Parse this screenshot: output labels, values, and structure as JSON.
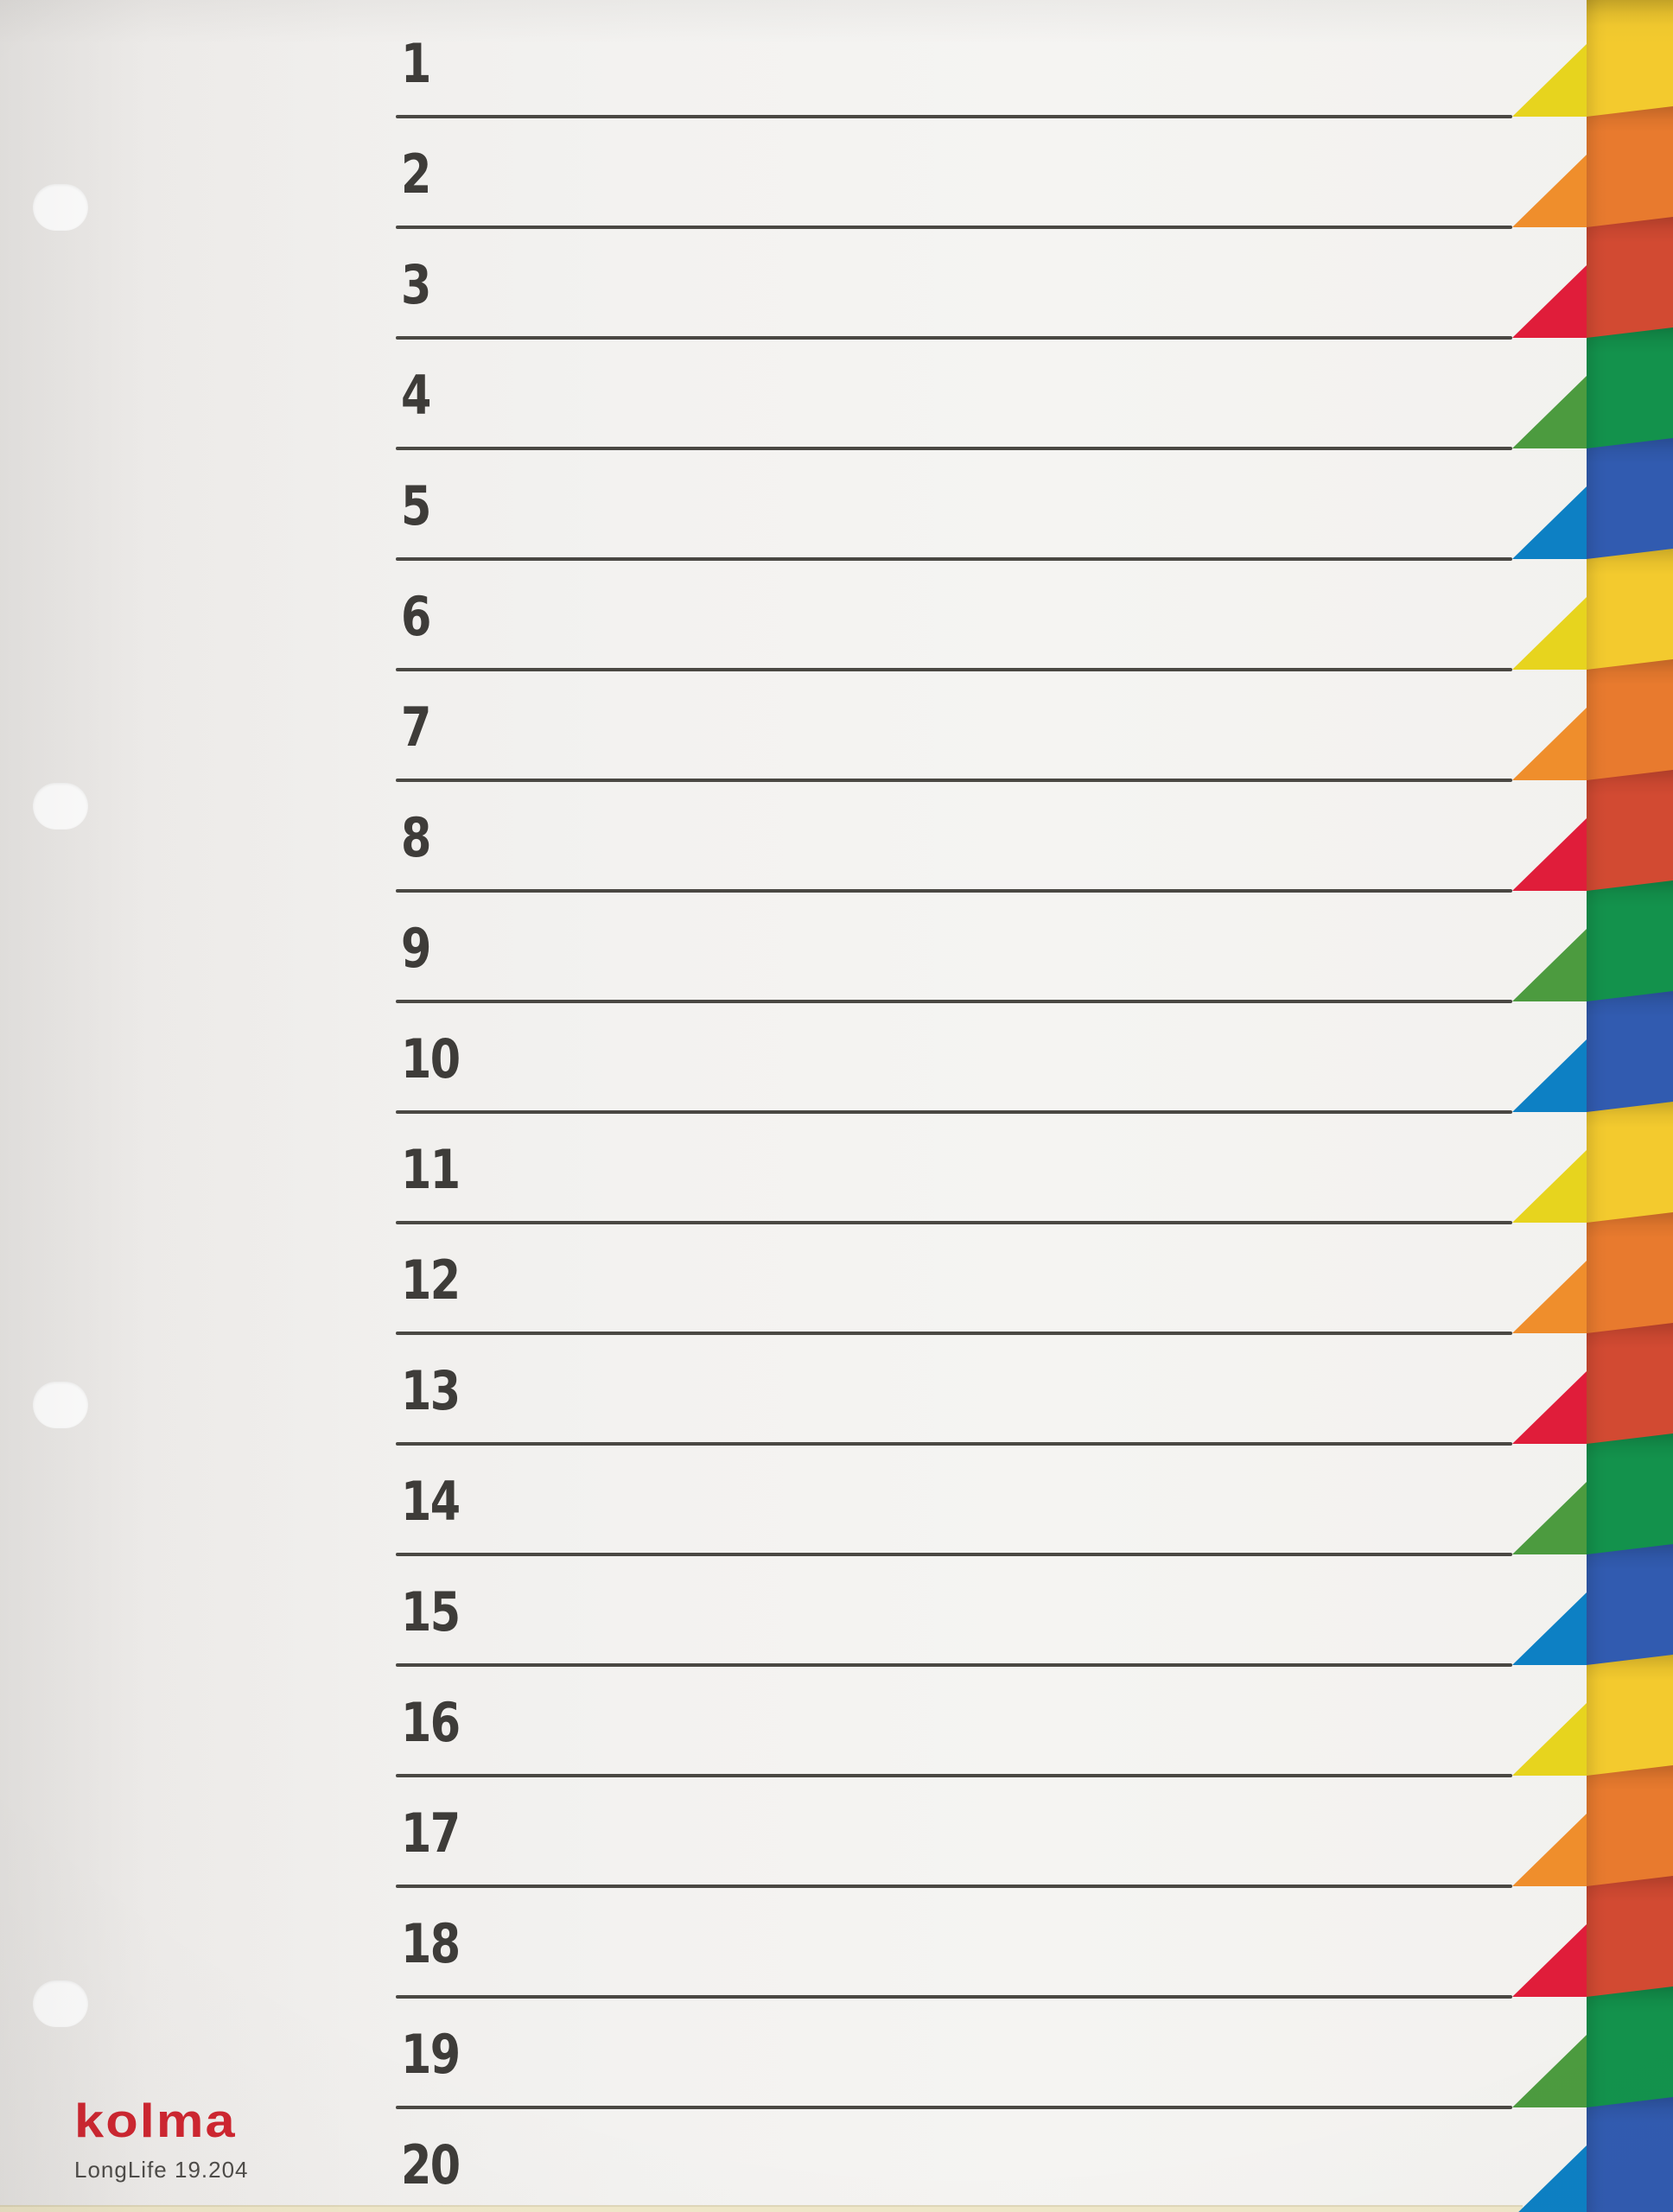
{
  "product": {
    "brand": "kolma",
    "series": "LongLife",
    "model": "19.204"
  },
  "branding": {
    "logo_text": "kolma",
    "logo_color": "#cf2630",
    "subtext": "LongLife 19.204",
    "subtext_color": "#4e4c49"
  },
  "register": {
    "tab_count": 20,
    "color_cycle": [
      "yellow",
      "orange",
      "red",
      "green",
      "blue"
    ],
    "tabs": [
      {
        "label": "1",
        "color": "yellow"
      },
      {
        "label": "2",
        "color": "orange"
      },
      {
        "label": "3",
        "color": "red"
      },
      {
        "label": "4",
        "color": "green"
      },
      {
        "label": "5",
        "color": "blue"
      },
      {
        "label": "6",
        "color": "yellow"
      },
      {
        "label": "7",
        "color": "orange"
      },
      {
        "label": "8",
        "color": "red"
      },
      {
        "label": "9",
        "color": "green"
      },
      {
        "label": "10",
        "color": "blue"
      },
      {
        "label": "11",
        "color": "yellow"
      },
      {
        "label": "12",
        "color": "orange"
      },
      {
        "label": "13",
        "color": "red"
      },
      {
        "label": "14",
        "color": "green"
      },
      {
        "label": "15",
        "color": "blue"
      },
      {
        "label": "16",
        "color": "yellow"
      },
      {
        "label": "17",
        "color": "orange"
      },
      {
        "label": "18",
        "color": "red"
      },
      {
        "label": "19",
        "color": "green"
      },
      {
        "label": "20",
        "color": "blue"
      }
    ],
    "palette": {
      "yellow": {
        "tab": "#e7d41e",
        "edge": "#f3ca2e"
      },
      "orange": {
        "tab": "#ef8e2c",
        "edge": "#e87a2e"
      },
      "red": {
        "tab": "#e01d3a",
        "edge": "#d24a32"
      },
      "green": {
        "tab": "#4c9b3f",
        "edge": "#13924c"
      },
      "blue": {
        "tab": "#0d80c4",
        "edge": "#315bb0"
      }
    },
    "sheet_color": "#f3f2f0",
    "rule_color": "#4a4843",
    "number_color": "#3e3c39",
    "under_sheet_edge_color": "#efe7c9"
  },
  "punch_holes": {
    "count": 4,
    "side": "left"
  }
}
